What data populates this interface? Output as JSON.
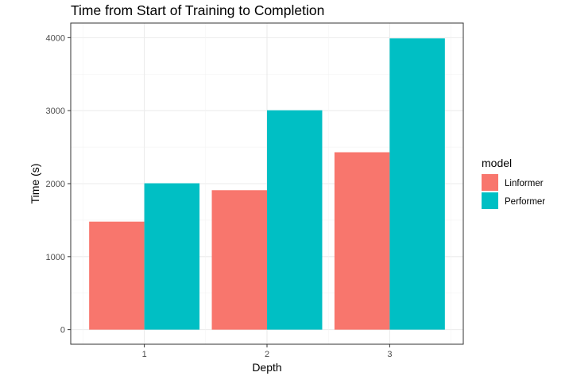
{
  "chart_data": {
    "type": "bar",
    "title": "Time from Start of Training to Completion",
    "xlabel": "Depth",
    "ylabel": "Time (s)",
    "categories": [
      "1",
      "2",
      "3"
    ],
    "series": [
      {
        "name": "Linformer",
        "color": "#F8766D",
        "values": [
          1480,
          1910,
          2430
        ]
      },
      {
        "name": "Performer",
        "color": "#00BFC4",
        "values": [
          2005,
          3005,
          3990
        ]
      }
    ],
    "ylim": [
      -200,
      4200
    ],
    "yticks": [
      0,
      1000,
      2000,
      3000,
      4000
    ],
    "yticks_labels": [
      "0",
      "1000",
      "2000",
      "3000",
      "4000"
    ],
    "grid": true,
    "legend": {
      "title": "model",
      "position": "right"
    }
  }
}
